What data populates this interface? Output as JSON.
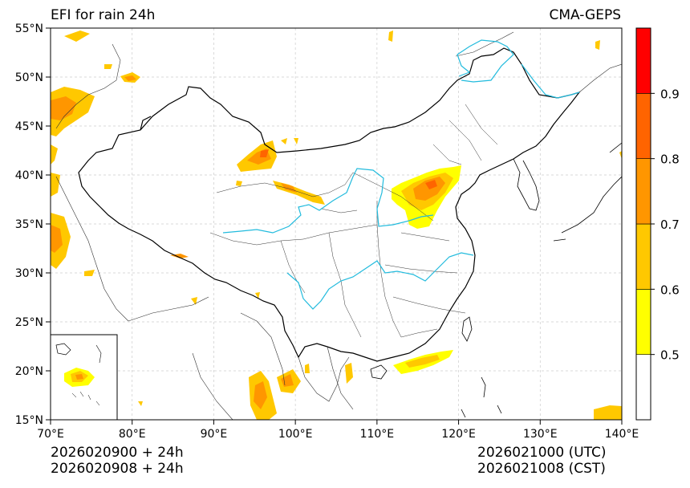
{
  "header": {
    "title_left": "EFI for rain 24h",
    "title_right": "CMA-GEPS"
  },
  "footer": {
    "left_line1": "2026020900 + 24h",
    "left_line2": "2026020908 + 24h",
    "right_line1": "2026021000 (UTC)",
    "right_line2": "2026021008 (CST)"
  },
  "map": {
    "lon_range": [
      70,
      140
    ],
    "lat_range": [
      15,
      55
    ],
    "lon_ticks": [
      "70°E",
      "80°E",
      "90°E",
      "100°E",
      "110°E",
      "120°E",
      "130°E",
      "140°E"
    ],
    "lat_ticks": [
      "55°N",
      "50°N",
      "45°N",
      "40°N",
      "35°N",
      "30°N",
      "25°N",
      "20°N",
      "15°N"
    ],
    "grid": true,
    "river_color": "#22bbdd",
    "border_color": "#000000"
  },
  "colorbar": {
    "labels": [
      "0.5",
      "0.6",
      "0.7",
      "0.8",
      "0.9"
    ],
    "colors": [
      "#ffffff",
      "#ffff00",
      "#ffc800",
      "#ff9600",
      "#ff6400",
      "#ff0000"
    ]
  }
}
